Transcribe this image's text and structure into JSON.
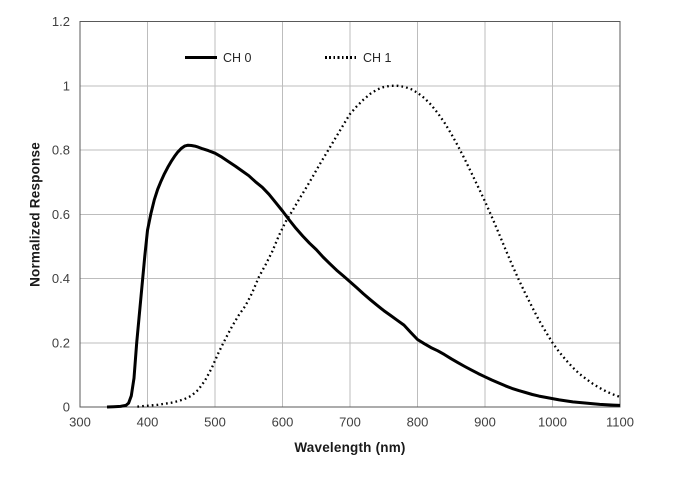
{
  "page": {
    "background": "#ffffff"
  },
  "chart_data": {
    "type": "line",
    "title": "",
    "xlabel": "Wavelength (nm)",
    "ylabel": "Normalized Response",
    "xlim": [
      300,
      1100
    ],
    "ylim": [
      0,
      1.2
    ],
    "x_ticks": [
      300,
      400,
      500,
      600,
      700,
      800,
      900,
      1000,
      1100
    ],
    "x_tick_labels": [
      "300",
      "400",
      "500",
      "600",
      "700",
      "800",
      "900",
      "1000",
      "1100"
    ],
    "y_ticks": [
      0,
      0.2,
      0.4,
      0.6,
      0.8,
      1.0,
      1.2
    ],
    "y_tick_labels": [
      "0",
      "0.2",
      "0.4",
      "0.6",
      "0.8",
      "1",
      "1.2"
    ],
    "grid": true,
    "legend": {
      "position": "top-inside",
      "entries": [
        "CH 0",
        "CH 1"
      ]
    },
    "colors": {
      "series": "#000000",
      "gridline": "#bdbdbd",
      "plot_border": "#595959",
      "tick_text": "#404040",
      "title_text": "#1a1a1a"
    },
    "series": [
      {
        "name": "CH 0",
        "line_style": "solid",
        "points": [
          [
            340,
            0
          ],
          [
            350,
            0.001
          ],
          [
            360,
            0.002
          ],
          [
            368,
            0.005
          ],
          [
            372,
            0.012
          ],
          [
            376,
            0.035
          ],
          [
            380,
            0.09
          ],
          [
            384,
            0.2
          ],
          [
            388,
            0.29
          ],
          [
            392,
            0.38
          ],
          [
            396,
            0.47
          ],
          [
            400,
            0.55
          ],
          [
            405,
            0.602
          ],
          [
            410,
            0.645
          ],
          [
            415,
            0.677
          ],
          [
            420,
            0.703
          ],
          [
            425,
            0.726
          ],
          [
            430,
            0.746
          ],
          [
            435,
            0.764
          ],
          [
            440,
            0.78
          ],
          [
            445,
            0.794
          ],
          [
            450,
            0.805
          ],
          [
            455,
            0.812
          ],
          [
            460,
            0.815
          ],
          [
            465,
            0.814
          ],
          [
            470,
            0.812
          ],
          [
            475,
            0.809
          ],
          [
            480,
            0.805
          ],
          [
            490,
            0.798
          ],
          [
            500,
            0.79
          ],
          [
            510,
            0.778
          ],
          [
            520,
            0.764
          ],
          [
            530,
            0.75
          ],
          [
            540,
            0.735
          ],
          [
            550,
            0.72
          ],
          [
            560,
            0.701
          ],
          [
            570,
            0.684
          ],
          [
            580,
            0.662
          ],
          [
            590,
            0.636
          ],
          [
            600,
            0.61
          ],
          [
            610,
            0.582
          ],
          [
            620,
            0.556
          ],
          [
            630,
            0.532
          ],
          [
            640,
            0.51
          ],
          [
            650,
            0.49
          ],
          [
            660,
            0.467
          ],
          [
            670,
            0.446
          ],
          [
            680,
            0.426
          ],
          [
            690,
            0.408
          ],
          [
            700,
            0.39
          ],
          [
            710,
            0.371
          ],
          [
            720,
            0.352
          ],
          [
            730,
            0.334
          ],
          [
            740,
            0.317
          ],
          [
            750,
            0.3
          ],
          [
            760,
            0.285
          ],
          [
            770,
            0.27
          ],
          [
            780,
            0.255
          ],
          [
            790,
            0.232
          ],
          [
            800,
            0.21
          ],
          [
            810,
            0.197
          ],
          [
            820,
            0.185
          ],
          [
            830,
            0.175
          ],
          [
            840,
            0.163
          ],
          [
            850,
            0.15
          ],
          [
            860,
            0.138
          ],
          [
            870,
            0.126
          ],
          [
            880,
            0.115
          ],
          [
            890,
            0.104
          ],
          [
            900,
            0.094
          ],
          [
            910,
            0.084
          ],
          [
            920,
            0.075
          ],
          [
            930,
            0.066
          ],
          [
            940,
            0.058
          ],
          [
            950,
            0.051
          ],
          [
            960,
            0.045
          ],
          [
            970,
            0.039
          ],
          [
            980,
            0.034
          ],
          [
            990,
            0.03
          ],
          [
            1000,
            0.026
          ],
          [
            1010,
            0.022
          ],
          [
            1020,
            0.019
          ],
          [
            1030,
            0.016
          ],
          [
            1040,
            0.014
          ],
          [
            1050,
            0.012
          ],
          [
            1060,
            0.01
          ],
          [
            1070,
            0.008
          ],
          [
            1080,
            0.007
          ],
          [
            1090,
            0.006
          ],
          [
            1100,
            0.005
          ]
        ]
      },
      {
        "name": "CH 1",
        "line_style": "dotted",
        "points": [
          [
            385,
            0.001
          ],
          [
            395,
            0.003
          ],
          [
            405,
            0.005
          ],
          [
            415,
            0.007
          ],
          [
            425,
            0.01
          ],
          [
            435,
            0.013
          ],
          [
            445,
            0.018
          ],
          [
            455,
            0.025
          ],
          [
            465,
            0.035
          ],
          [
            475,
            0.053
          ],
          [
            485,
            0.082
          ],
          [
            495,
            0.12
          ],
          [
            505,
            0.168
          ],
          [
            515,
            0.21
          ],
          [
            525,
            0.25
          ],
          [
            535,
            0.285
          ],
          [
            545,
            0.315
          ],
          [
            555,
            0.355
          ],
          [
            565,
            0.405
          ],
          [
            575,
            0.443
          ],
          [
            585,
            0.485
          ],
          [
            595,
            0.535
          ],
          [
            605,
            0.578
          ],
          [
            615,
            0.612
          ],
          [
            625,
            0.648
          ],
          [
            635,
            0.682
          ],
          [
            645,
            0.718
          ],
          [
            655,
            0.755
          ],
          [
            665,
            0.79
          ],
          [
            675,
            0.825
          ],
          [
            685,
            0.86
          ],
          [
            695,
            0.895
          ],
          [
            700,
            0.912
          ],
          [
            710,
            0.936
          ],
          [
            720,
            0.957
          ],
          [
            730,
            0.975
          ],
          [
            740,
            0.988
          ],
          [
            750,
            0.996
          ],
          [
            760,
            1.0
          ],
          [
            770,
            1.0
          ],
          [
            780,
            0.997
          ],
          [
            790,
            0.99
          ],
          [
            800,
            0.978
          ],
          [
            810,
            0.962
          ],
          [
            820,
            0.941
          ],
          [
            830,
            0.915
          ],
          [
            840,
            0.885
          ],
          [
            850,
            0.85
          ],
          [
            860,
            0.812
          ],
          [
            870,
            0.771
          ],
          [
            880,
            0.728
          ],
          [
            890,
            0.684
          ],
          [
            900,
            0.64
          ],
          [
            910,
            0.592
          ],
          [
            920,
            0.543
          ],
          [
            930,
            0.492
          ],
          [
            940,
            0.443
          ],
          [
            950,
            0.396
          ],
          [
            960,
            0.352
          ],
          [
            970,
            0.31
          ],
          [
            980,
            0.27
          ],
          [
            990,
            0.234
          ],
          [
            1000,
            0.2
          ],
          [
            1010,
            0.171
          ],
          [
            1020,
            0.146
          ],
          [
            1030,
            0.123
          ],
          [
            1040,
            0.103
          ],
          [
            1050,
            0.087
          ],
          [
            1060,
            0.072
          ],
          [
            1070,
            0.059
          ],
          [
            1080,
            0.048
          ],
          [
            1090,
            0.039
          ],
          [
            1100,
            0.031
          ]
        ]
      }
    ]
  }
}
